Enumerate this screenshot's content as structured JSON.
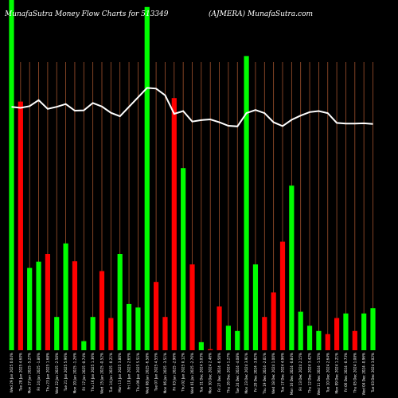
{
  "header": {
    "left": "MunafaSutra  Money Flow  Charts for 513349",
    "right": "(AJMERA) MunafaSutra.com"
  },
  "colors": {
    "background": "#000000",
    "up": "#00ff00",
    "down": "#ff0000",
    "grid": "#a0522d",
    "line": "#ffffff"
  },
  "chart_data": {
    "type": "bar",
    "grid": "vertical",
    "ylim": [
      0,
      100
    ],
    "categories": [
      "Wed 29 Jan 2025 0.04%",
      "Tue 28 Jan 2025 4.60%",
      "Mon 27 Jan 2025 -5.27%",
      "Fri 24 Jan 2025 -1.86%",
      "Thu 23 Jan 2025 1.68%",
      "Wed 22 Jan 2025 -2.50%",
      "Tue 21 Jan 2025 5.96%",
      "Mon 20 Jan 2025 -1.26%",
      "Fri 17 Jan 2025 -0.74%",
      "Thu 16 Jan 2025 1.36%",
      "Wed 15 Jan 2025 -0.52%",
      "Tue 14 Jan 2025 -0.21%",
      "Mon 13 Jan 2025 3.80%",
      "Fri 10 Jan 2025 2.65%",
      "Thu 09 Jan 2025 5.51%",
      "Wed 08 Jan 2025 -6.58%",
      "Tue 07 Jan 2025 4.55%",
      "Mon 06 Jan 2025 -3.51%",
      "Fri 03 Jan 2025 -2.96%",
      "Thu 02 Jan 2025 0.12%",
      "Wed 01 Jan 2025 -2.76%",
      "Tue 31 Dec 2024 5.03%",
      "Mon 30 Dec 2024 2.46%",
      "Fri 27 Dec 2024 -0.50%",
      "Thu 26 Dec 2024 1.27%",
      "Tue 24 Dec 2024 -4.08%",
      "Mon 23 Dec 2024 3.91%",
      "Fri 20 Dec 2024 -3.82%",
      "Thu 19 Dec 2024 -2.01%",
      "Wed 18 Dec 2024 1.00%",
      "Tue 17 Dec 2024 4.96%",
      "Mon 16 Dec 2024 -0.84%",
      "Fri 13 Dec 2024 2.15%",
      "Thu 12 Dec 2024 3.42%",
      "Wed 11 Dec 2024 -1.55%",
      "Tue 10 Dec 2024 2.64%",
      "Mon 09 Dec 2024 1.21%",
      "Fri 06 Dec 2024 -0.73%",
      "Thu 05 Dec 2024 1.08%",
      "Wed 04 Dec 2024 -0.96%",
      "Tue 03 Dec 2024 3.02%"
    ],
    "series": [
      {
        "kind": "money-flow-bars",
        "values": [
          100,
          71,
          23.5,
          25.3,
          27.5,
          9.5,
          30.5,
          25.4,
          2.6,
          9.5,
          22.6,
          9.2,
          27.5,
          13.2,
          12.2,
          98,
          19.5,
          9.5,
          72,
          52,
          24.5,
          2.3,
          0.3,
          12.5,
          7,
          5.5,
          84,
          24.5,
          9.5,
          16.5,
          31,
          47,
          11,
          7,
          5.5,
          4.6,
          9.2,
          10.5,
          5.5,
          10.5,
          12
        ],
        "directions": [
          "up",
          "down",
          "up",
          "up",
          "down",
          "up",
          "up",
          "down",
          "up",
          "up",
          "down",
          "down",
          "up",
          "up",
          "up",
          "up",
          "down",
          "down",
          "down",
          "up",
          "down",
          "up",
          "down",
          "down",
          "up",
          "up",
          "up",
          "up",
          "down",
          "down",
          "down",
          "up",
          "up",
          "up",
          "up",
          "down",
          "down",
          "up",
          "down",
          "up",
          "up"
        ]
      },
      {
        "kind": "trend-line",
        "values": [
          69.5,
          69.2,
          69.7,
          71.4,
          68.9,
          69.5,
          70.3,
          68.4,
          68.5,
          70.6,
          69.6,
          67.8,
          66.8,
          69.5,
          72.2,
          74.9,
          74.7,
          72.8,
          67.5,
          68.3,
          65.3,
          65.7,
          65.9,
          65.1,
          64.1,
          63.9,
          67.7,
          68.6,
          67.7,
          65.1,
          64,
          65.8,
          67,
          68,
          68.3,
          67.7,
          64.9,
          64.7,
          64.7,
          64.8,
          64.6
        ]
      }
    ]
  }
}
